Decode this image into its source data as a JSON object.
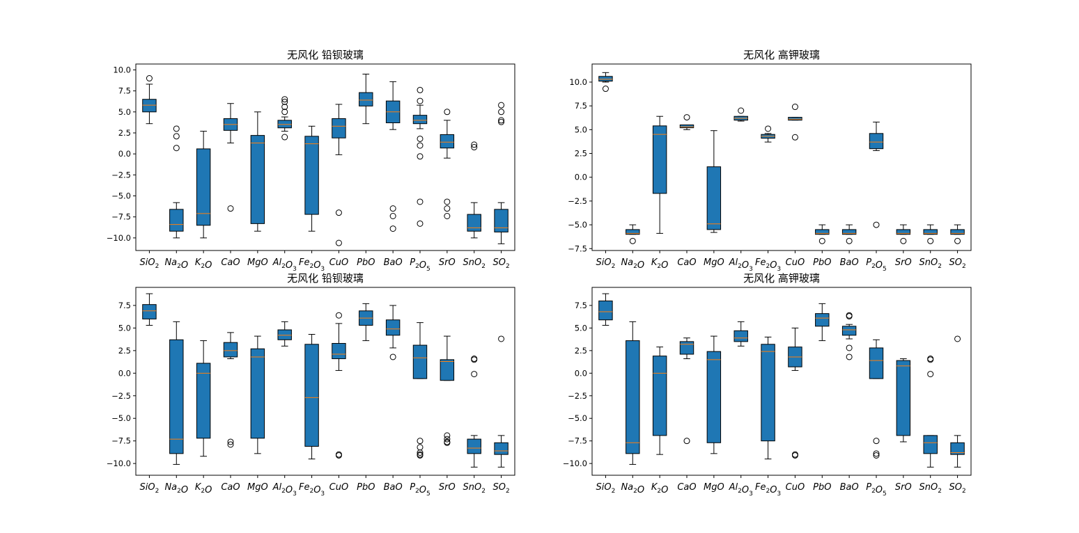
{
  "colors": {
    "box": "#1f77b4",
    "median": "#ff7f0e",
    "line": "#000000"
  },
  "categories": [
    "SiO2",
    "Na2O",
    "K2O",
    "CaO",
    "MgO",
    "Al2O3",
    "Fe2O3",
    "CuO",
    "PbO",
    "BaO",
    "P2O5",
    "SrO",
    "SnO2",
    "SO2"
  ],
  "chart_data": [
    {
      "type": "box",
      "title": "无风化 铅钡玻璃",
      "ylim": [
        -11.5,
        10.7
      ],
      "yticks": [
        10.0,
        7.5,
        5.0,
        2.5,
        0.0,
        -2.5,
        -5.0,
        -7.5,
        -10.0
      ],
      "ytick_labels": [
        "10.0",
        "7.5",
        "5.0",
        "2.5",
        "0.0",
        "−2.5",
        "−5.0",
        "−7.5",
        "−10.0"
      ],
      "boxes": [
        {
          "whislo": 3.6,
          "q1": 5.0,
          "med": 5.8,
          "q3": 6.5,
          "whishi": 8.3,
          "fliers": [
            9.0
          ]
        },
        {
          "whislo": -10.0,
          "q1": -9.2,
          "med": -8.4,
          "q3": -6.6,
          "whishi": -5.8,
          "fliers": [
            0.7,
            2.1,
            3.0
          ]
        },
        {
          "whislo": -10.0,
          "q1": -8.5,
          "med": -7.1,
          "q3": 0.6,
          "whishi": 2.7,
          "fliers": []
        },
        {
          "whislo": 1.3,
          "q1": 2.8,
          "med": 3.5,
          "q3": 4.2,
          "whishi": 6.0,
          "fliers": [
            -6.5
          ]
        },
        {
          "whislo": -9.2,
          "q1": -8.3,
          "med": 1.3,
          "q3": 2.2,
          "whishi": 5.0,
          "fliers": []
        },
        {
          "whislo": 2.7,
          "q1": 3.1,
          "med": 3.5,
          "q3": 4.0,
          "whishi": 4.4,
          "fliers": [
            2.0,
            5.0,
            5.6,
            6.2,
            6.5
          ]
        },
        {
          "whislo": -9.2,
          "q1": -7.2,
          "med": 1.2,
          "q3": 2.1,
          "whishi": 3.3,
          "fliers": []
        },
        {
          "whislo": -0.1,
          "q1": 1.9,
          "med": 3.3,
          "q3": 4.2,
          "whishi": 5.9,
          "fliers": [
            -7.0,
            -10.6
          ]
        },
        {
          "whislo": 3.6,
          "q1": 5.7,
          "med": 6.4,
          "q3": 7.3,
          "whishi": 9.5,
          "fliers": []
        },
        {
          "whislo": 2.9,
          "q1": 3.7,
          "med": 5.0,
          "q3": 6.3,
          "whishi": 8.6,
          "fliers": [
            -6.5,
            -7.4,
            -8.9
          ]
        },
        {
          "whislo": 3.0,
          "q1": 3.6,
          "med": 4.0,
          "q3": 4.6,
          "whishi": 5.8,
          "fliers": [
            7.6,
            6.3,
            1.8,
            1.0,
            -0.3,
            -5.7,
            -8.3
          ]
        },
        {
          "whislo": -0.5,
          "q1": 0.7,
          "med": 1.4,
          "q3": 2.3,
          "whishi": 4.0,
          "fliers": [
            5.0,
            -5.7,
            -6.5,
            -7.4
          ]
        },
        {
          "whislo": -10.0,
          "q1": -9.2,
          "med": -8.8,
          "q3": -7.2,
          "whishi": -5.8,
          "fliers": [
            0.8,
            1.1
          ]
        },
        {
          "whislo": -10.7,
          "q1": -9.3,
          "med": -8.8,
          "q3": -6.6,
          "whishi": -5.8,
          "fliers": [
            3.8,
            4.0,
            5.0,
            5.8
          ]
        }
      ]
    },
    {
      "type": "box",
      "title": "无风化 高钾玻璃",
      "ylim": [
        -7.7,
        11.9
      ],
      "yticks": [
        10.0,
        7.5,
        5.0,
        2.5,
        0.0,
        -2.5,
        -5.0,
        -7.5
      ],
      "ytick_labels": [
        "10.0",
        "7.5",
        "5.0",
        "2.5",
        "0.0",
        "−2.5",
        "−5.0",
        "−7.5"
      ],
      "boxes": [
        {
          "whislo": 10.0,
          "q1": 10.1,
          "med": 10.3,
          "q3": 10.6,
          "whishi": 11.0,
          "fliers": [
            9.3
          ]
        },
        {
          "whislo": -6.0,
          "q1": -6.0,
          "med": -5.9,
          "q3": -5.5,
          "whishi": -5.0,
          "fliers": [
            -6.7
          ]
        },
        {
          "whislo": -5.9,
          "q1": -1.7,
          "med": 4.5,
          "q3": 5.4,
          "whishi": 6.4,
          "fliers": []
        },
        {
          "whislo": 5.0,
          "q1": 5.2,
          "med": 5.3,
          "q3": 5.5,
          "whishi": 5.5,
          "fliers": [
            6.3
          ]
        },
        {
          "whislo": -5.8,
          "q1": -5.5,
          "med": -4.9,
          "q3": 1.1,
          "whishi": 4.9,
          "fliers": []
        },
        {
          "whislo": 5.9,
          "q1": 6.0,
          "med": 6.2,
          "q3": 6.4,
          "whishi": 6.4,
          "fliers": [
            7.0
          ]
        },
        {
          "whislo": 3.7,
          "q1": 4.1,
          "med": 4.3,
          "q3": 4.5,
          "whishi": 4.6,
          "fliers": [
            5.1
          ]
        },
        {
          "whislo": 6.0,
          "q1": 6.0,
          "med": 6.1,
          "q3": 6.3,
          "whishi": 6.3,
          "fliers": [
            7.4,
            4.2
          ]
        },
        {
          "whislo": -6.0,
          "q1": -6.0,
          "med": -5.9,
          "q3": -5.5,
          "whishi": -5.0,
          "fliers": [
            -6.7
          ]
        },
        {
          "whislo": -6.0,
          "q1": -6.0,
          "med": -5.9,
          "q3": -5.5,
          "whishi": -5.0,
          "fliers": [
            -6.7
          ]
        },
        {
          "whislo": 2.8,
          "q1": 3.0,
          "med": 3.7,
          "q3": 4.6,
          "whishi": 5.8,
          "fliers": [
            -5.0
          ]
        },
        {
          "whislo": -6.0,
          "q1": -6.0,
          "med": -5.9,
          "q3": -5.5,
          "whishi": -5.0,
          "fliers": [
            -6.7
          ]
        },
        {
          "whislo": -6.0,
          "q1": -6.0,
          "med": -5.9,
          "q3": -5.5,
          "whishi": -5.0,
          "fliers": [
            -6.7
          ]
        },
        {
          "whislo": -6.0,
          "q1": -6.0,
          "med": -5.9,
          "q3": -5.5,
          "whishi": -5.0,
          "fliers": [
            -6.7
          ]
        }
      ]
    },
    {
      "type": "box",
      "title": "无风化 铅钡玻璃",
      "ylim": [
        -11.3,
        9.5
      ],
      "yticks": [
        7.5,
        5.0,
        2.5,
        0.0,
        -2.5,
        -5.0,
        -7.5,
        -10.0
      ],
      "ytick_labels": [
        "7.5",
        "5.0",
        "2.5",
        "0.0",
        "−2.5",
        "−5.0",
        "−7.5",
        "−10.0"
      ],
      "boxes": [
        {
          "whislo": 5.3,
          "q1": 6.0,
          "med": 6.9,
          "q3": 7.6,
          "whishi": 8.8,
          "fliers": []
        },
        {
          "whislo": -10.1,
          "q1": -8.9,
          "med": -7.3,
          "q3": 3.7,
          "whishi": 5.7,
          "fliers": []
        },
        {
          "whislo": -9.2,
          "q1": -7.2,
          "med": 0.0,
          "q3": 1.1,
          "whishi": 3.6,
          "fliers": []
        },
        {
          "whislo": 1.6,
          "q1": 1.8,
          "med": 2.5,
          "q3": 3.4,
          "whishi": 4.5,
          "fliers": [
            -7.6,
            -7.9
          ]
        },
        {
          "whislo": -8.9,
          "q1": -7.2,
          "med": 1.8,
          "q3": 2.7,
          "whishi": 4.1,
          "fliers": []
        },
        {
          "whislo": 3.0,
          "q1": 3.7,
          "med": 4.2,
          "q3": 4.8,
          "whishi": 5.7,
          "fliers": []
        },
        {
          "whislo": -9.5,
          "q1": -8.1,
          "med": -2.7,
          "q3": 3.2,
          "whishi": 4.3,
          "fliers": []
        },
        {
          "whislo": 0.3,
          "q1": 1.6,
          "med": 2.1,
          "q3": 3.3,
          "whishi": 5.5,
          "fliers": [
            6.4,
            -9.0,
            -9.1
          ]
        },
        {
          "whislo": 3.6,
          "q1": 5.3,
          "med": 6.1,
          "q3": 6.9,
          "whishi": 7.7,
          "fliers": []
        },
        {
          "whislo": 2.8,
          "q1": 4.2,
          "med": 4.9,
          "q3": 5.9,
          "whishi": 7.5,
          "fliers": [
            1.8
          ]
        },
        {
          "whislo": -0.6,
          "q1": -0.6,
          "med": 1.7,
          "q3": 3.1,
          "whishi": 5.6,
          "fliers": [
            -7.5,
            -8.2,
            -8.8,
            -9.0,
            -9.1
          ]
        },
        {
          "whislo": -0.8,
          "q1": -0.8,
          "med": 1.3,
          "q3": 1.5,
          "whishi": 4.1,
          "fliers": [
            -6.9,
            -7.3,
            -7.6,
            -7.7
          ]
        },
        {
          "whislo": -10.4,
          "q1": -8.9,
          "med": -8.3,
          "q3": -7.3,
          "whishi": -6.9,
          "fliers": [
            1.6,
            1.5,
            -0.1
          ]
        },
        {
          "whislo": -10.4,
          "q1": -9.0,
          "med": -8.6,
          "q3": -7.7,
          "whishi": -6.9,
          "fliers": [
            3.8
          ]
        }
      ]
    },
    {
      "type": "box",
      "title": "无风化 高钾玻璃",
      "ylim": [
        -11.3,
        9.5
      ],
      "yticks": [
        7.5,
        5.0,
        2.5,
        0.0,
        -2.5,
        -5.0,
        -7.5,
        -10.0
      ],
      "ytick_labels": [
        "7.5",
        "5.0",
        "2.5",
        "0.0",
        "−2.5",
        "−5.0",
        "−7.5",
        "−10.0"
      ],
      "boxes": [
        {
          "whislo": 5.3,
          "q1": 5.9,
          "med": 6.8,
          "q3": 8.0,
          "whishi": 8.8,
          "fliers": []
        },
        {
          "whislo": -10.1,
          "q1": -8.9,
          "med": -7.7,
          "q3": 3.6,
          "whishi": 5.7,
          "fliers": []
        },
        {
          "whislo": -9.0,
          "q1": -6.9,
          "med": 0.0,
          "q3": 1.9,
          "whishi": 2.9,
          "fliers": []
        },
        {
          "whislo": 1.6,
          "q1": 2.1,
          "med": 3.2,
          "q3": 3.5,
          "whishi": 3.9,
          "fliers": [
            -7.5
          ]
        },
        {
          "whislo": -8.9,
          "q1": -7.7,
          "med": 1.5,
          "q3": 2.4,
          "whishi": 4.1,
          "fliers": []
        },
        {
          "whislo": 3.0,
          "q1": 3.5,
          "med": 3.9,
          "q3": 4.7,
          "whishi": 5.7,
          "fliers": []
        },
        {
          "whislo": -9.5,
          "q1": -7.5,
          "med": 2.4,
          "q3": 3.2,
          "whishi": 4.0,
          "fliers": []
        },
        {
          "whislo": 0.3,
          "q1": 0.7,
          "med": 1.8,
          "q3": 2.9,
          "whishi": 5.0,
          "fliers": [
            -9.0,
            -9.1
          ]
        },
        {
          "whislo": 3.6,
          "q1": 5.2,
          "med": 6.1,
          "q3": 6.6,
          "whishi": 7.7,
          "fliers": []
        },
        {
          "whislo": 3.8,
          "q1": 4.2,
          "med": 4.8,
          "q3": 5.2,
          "whishi": 5.4,
          "fliers": [
            6.3,
            6.4,
            2.8,
            1.8
          ]
        },
        {
          "whislo": -0.6,
          "q1": -0.6,
          "med": 1.4,
          "q3": 2.8,
          "whishi": 3.7,
          "fliers": [
            -7.5,
            -8.9,
            -9.1
          ]
        },
        {
          "whislo": -7.6,
          "q1": -6.9,
          "med": 0.8,
          "q3": 1.4,
          "whishi": 1.6,
          "fliers": []
        },
        {
          "whislo": -10.4,
          "q1": -8.9,
          "med": -7.7,
          "q3": -6.9,
          "whishi": -6.9,
          "fliers": [
            1.6,
            1.5,
            -0.1
          ]
        },
        {
          "whislo": -10.4,
          "q1": -9.0,
          "med": -8.8,
          "q3": -7.7,
          "whishi": -6.9,
          "fliers": [
            3.8
          ]
        }
      ]
    }
  ]
}
